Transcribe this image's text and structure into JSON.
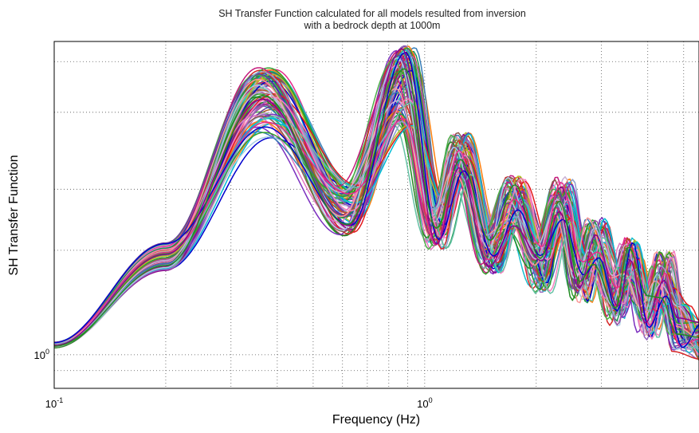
{
  "chart_data": {
    "type": "line",
    "title": "SH Transfer Function calculated for all models resulted from inversion",
    "subtitle": "with a bedrock depth at 1000m",
    "xlabel": "Frequency (Hz)",
    "ylabel": "SH Transfer Function",
    "xscale": "log",
    "yscale": "log",
    "xlim": [
      0.1,
      5.5
    ],
    "ylim": [
      0.8,
      8.0
    ],
    "grid": true,
    "grid_style": "dotted",
    "x_ticks": [
      {
        "value": 0.1,
        "base": "10",
        "exp": "-1"
      },
      {
        "value": 1,
        "base": "10",
        "exp": "0"
      }
    ],
    "y_ticks": [
      {
        "value": 1,
        "base": "10",
        "exp": "0"
      }
    ],
    "x_minor_grid": [
      0.2,
      0.3,
      0.4,
      0.5,
      0.6,
      0.7,
      0.8,
      0.9,
      2,
      3,
      4,
      5
    ],
    "y_minor_grid": [
      0.9,
      2,
      3,
      5,
      7
    ],
    "series_count": 90,
    "curve_family": {
      "low_freq_value": 1.06,
      "peaks": [
        {
          "frequency_hz": 0.37,
          "value_range": [
            4.2,
            6.8
          ]
        },
        {
          "frequency_hz": 0.88,
          "value_range": [
            4.5,
            7.8
          ]
        },
        {
          "frequency_hz": 1.25,
          "value_range": [
            3.2,
            4.4
          ]
        },
        {
          "frequency_hz": 1.75,
          "value_range": [
            2.3,
            3.3
          ]
        },
        {
          "frequency_hz": 2.35,
          "value_range": [
            2.4,
            3.3
          ]
        },
        {
          "frequency_hz": 2.9,
          "value_range": [
            1.8,
            2.5
          ]
        },
        {
          "frequency_hz": 3.6,
          "value_range": [
            1.6,
            2.2
          ]
        },
        {
          "frequency_hz": 4.4,
          "value_range": [
            1.4,
            2.0
          ]
        }
      ],
      "troughs": [
        {
          "frequency_hz": 0.62,
          "value_range": [
            2.2,
            3.1
          ]
        },
        {
          "frequency_hz": 1.08,
          "value_range": [
            2.0,
            2.8
          ]
        },
        {
          "frequency_hz": 1.5,
          "value_range": [
            1.7,
            2.3
          ]
        },
        {
          "frequency_hz": 2.05,
          "value_range": [
            1.5,
            2.1
          ]
        },
        {
          "frequency_hz": 2.65,
          "value_range": [
            1.4,
            1.9
          ]
        },
        {
          "frequency_hz": 3.3,
          "value_range": [
            1.2,
            1.7
          ]
        },
        {
          "frequency_hz": 4.0,
          "value_range": [
            1.1,
            1.5
          ]
        },
        {
          "frequency_hz": 4.9,
          "value_range": [
            1.0,
            1.4
          ]
        }
      ]
    },
    "colors": [
      "#1f3fbf",
      "#d62728",
      "#7b2fbf",
      "#2ca02c",
      "#17becf",
      "#e377c2",
      "#ff7f0e",
      "#8c564b",
      "#bcbd22",
      "#1a9850",
      "#9467bd",
      "#e41a1c",
      "#377eb8",
      "#4daf4a",
      "#984ea3",
      "#00bcd4",
      "#c51b7d",
      "#6a3d9a",
      "#b15928",
      "#33a02c",
      "#a6cee3",
      "#fb9a99",
      "#cab2d6",
      "#f781bf",
      "#66c2a5",
      "#8da0cb",
      "#e7298a",
      "#0000cd",
      "#8b008b",
      "#228b22"
    ]
  }
}
